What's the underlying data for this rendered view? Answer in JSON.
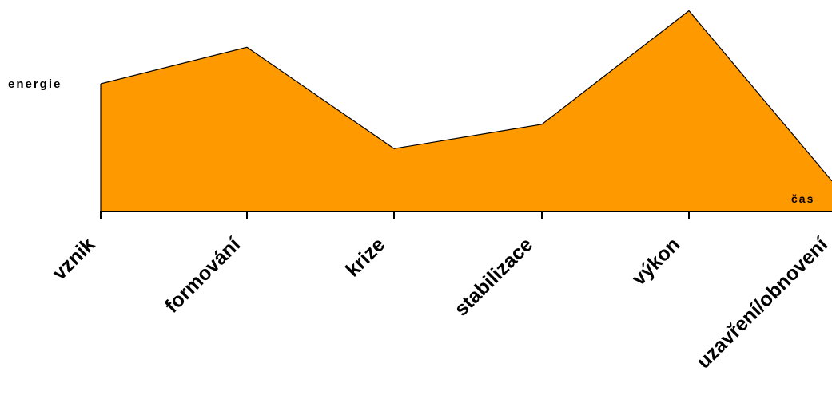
{
  "chart_data": {
    "type": "area",
    "categories": [
      "vznik",
      "formování",
      "krize",
      "stabilizace",
      "výkon",
      "uzavření/obnovení"
    ],
    "values": [
      63,
      81,
      31,
      43,
      99,
      15
    ],
    "ylabel": "energie",
    "xlabel": "čas",
    "ylim": [
      0,
      100
    ],
    "grid": false,
    "colors": {
      "fill": "#ff9900",
      "stroke": "#000000",
      "axis": "#000000"
    }
  }
}
